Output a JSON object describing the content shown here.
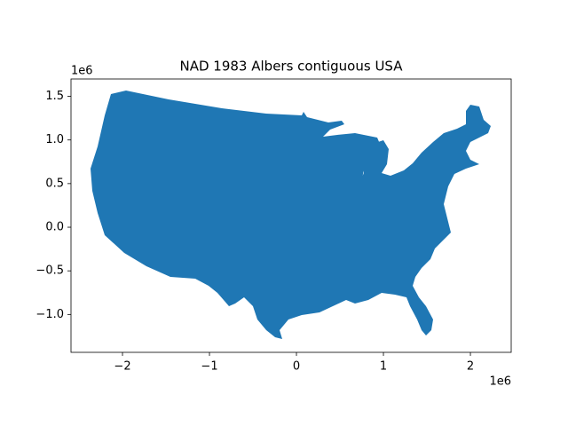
{
  "chart_data": {
    "type": "map",
    "title": "NAD 1983 Albers contiguous USA",
    "color": "#1f77b4",
    "xlim": [
      -2592000,
      2469000
    ],
    "ylim": [
      -1434000,
      1699000
    ],
    "xticks": [
      {
        "value": -2000000,
        "label": "−2"
      },
      {
        "value": -1000000,
        "label": "−1"
      },
      {
        "value": 0,
        "label": "0"
      },
      {
        "value": 1000000,
        "label": "1"
      },
      {
        "value": 2000000,
        "label": "2"
      }
    ],
    "yticks": [
      {
        "value": -1000000,
        "label": "−1.0"
      },
      {
        "value": -500000,
        "label": "−0.5"
      },
      {
        "value": 0,
        "label": "0.0"
      },
      {
        "value": 500000,
        "label": "0.5"
      },
      {
        "value": 1000000,
        "label": "1.0"
      },
      {
        "value": 1500000,
        "label": "1.5"
      }
    ],
    "x_offset_label": "1e6",
    "y_offset_label": "1e6"
  }
}
